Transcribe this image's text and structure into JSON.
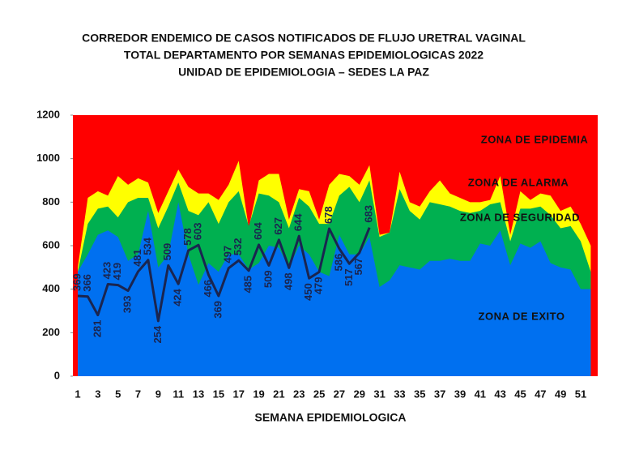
{
  "chart_data": {
    "type": "corridor",
    "title": [
      "CORREDOR ENDEMICO DE CASOS NOTIFICADOS DE FLUJO URETRAL VAGINAL",
      "TOTAL DEPARTAMENTO POR SEMANAS EPIDEMIOLOGICAS 2022",
      "UNIDAD DE EPIDEMIOLOGIA – SEDES LA PAZ"
    ],
    "x_label": "SEMANA EPIDEMIOLOGICA",
    "categories": [
      "1",
      null,
      "3",
      null,
      "5",
      null,
      "7",
      null,
      "9",
      null,
      "11",
      null,
      "13",
      null,
      "15",
      null,
      "17",
      null,
      "19",
      null,
      "21",
      null,
      "23",
      null,
      "25",
      null,
      "27",
      null,
      "29",
      null,
      "31",
      null,
      "33",
      null,
      "35",
      null,
      "37",
      null,
      "39",
      null,
      "41",
      null,
      "43",
      null,
      "45",
      null,
      "47",
      null,
      "49",
      null,
      "51",
      null
    ],
    "ylim": [
      0,
      1200
    ],
    "yticks": [
      0,
      200,
      400,
      600,
      800,
      1000,
      1200
    ],
    "background_zone": {
      "name": "ZONA DE EPIDEMIA",
      "color": "#ff0000"
    },
    "zones": [
      {
        "name": "ZONA DE ALARMA",
        "color": "#ffff00",
        "values": [
          500,
          820,
          850,
          830,
          920,
          880,
          910,
          890,
          750,
          850,
          950,
          870,
          840,
          840,
          810,
          880,
          990,
          680,
          900,
          930,
          930,
          720,
          860,
          850,
          720,
          880,
          930,
          920,
          880,
          970,
          650,
          660,
          940,
          800,
          780,
          850,
          900,
          840,
          820,
          800,
          800,
          810,
          920,
          650,
          850,
          810,
          840,
          830,
          760,
          780,
          700,
          600
        ]
      },
      {
        "name": "ZONA DE  SEGURIDAD",
        "color": "#00b050",
        "values": [
          480,
          700,
          770,
          780,
          730,
          800,
          820,
          820,
          680,
          780,
          890,
          760,
          740,
          800,
          700,
          800,
          850,
          690,
          840,
          830,
          800,
          680,
          820,
          780,
          700,
          700,
          830,
          870,
          800,
          900,
          640,
          660,
          860,
          760,
          720,
          800,
          790,
          780,
          760,
          750,
          760,
          790,
          800,
          620,
          770,
          770,
          780,
          740,
          680,
          690,
          620,
          480
        ]
      },
      {
        "name": "ZONA DE  EXITO",
        "color": "#0070f0",
        "values": [
          480,
          560,
          650,
          670,
          640,
          530,
          560,
          760,
          500,
          560,
          800,
          560,
          420,
          520,
          480,
          560,
          560,
          490,
          520,
          600,
          590,
          500,
          600,
          560,
          480,
          460,
          650,
          560,
          560,
          640,
          410,
          440,
          510,
          500,
          490,
          530,
          530,
          540,
          530,
          530,
          610,
          600,
          670,
          510,
          610,
          590,
          620,
          520,
          500,
          490,
          400,
          400
        ]
      }
    ],
    "series": [
      {
        "color": "#1a2550",
        "values": [
          369,
          366,
          281,
          423,
          419,
          393,
          481,
          534,
          254,
          509,
          424,
          578,
          603,
          466,
          369,
          497,
          532,
          485,
          604,
          509,
          627,
          498,
          644,
          450,
          479,
          678,
          586,
          517,
          567,
          683,
          null,
          null,
          null,
          null,
          null,
          null,
          null,
          null,
          null,
          null,
          null,
          null,
          null,
          null,
          null,
          null,
          null,
          null,
          null,
          null,
          null,
          null
        ]
      }
    ]
  }
}
